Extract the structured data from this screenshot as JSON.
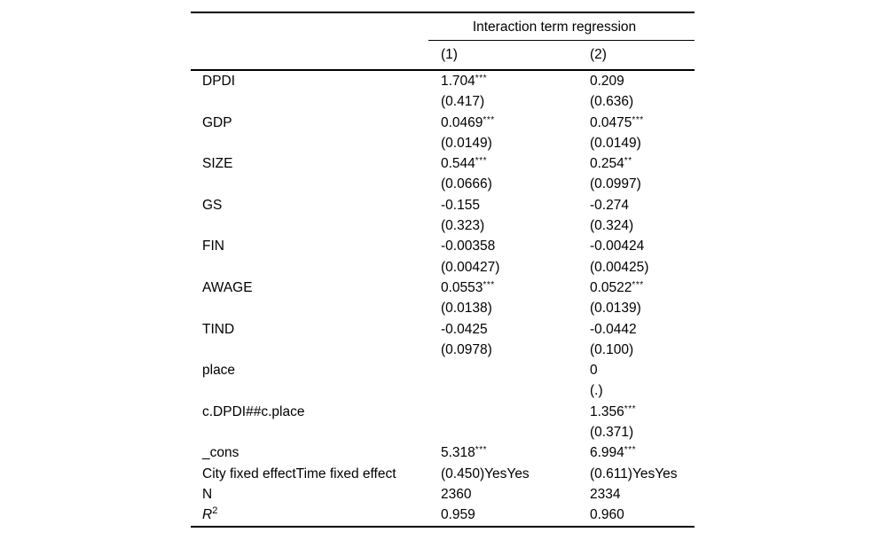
{
  "table": {
    "spanner": "Interaction term regression",
    "column_headers": [
      "(1)",
      "(2)"
    ],
    "rows": [
      {
        "label": "DPDI",
        "c1": "1.704***",
        "c2": "0.209"
      },
      {
        "label": "",
        "c1": "(0.417)",
        "c2": "(0.636)"
      },
      {
        "label": "GDP",
        "c1": "0.0469***",
        "c2": "0.0475***"
      },
      {
        "label": "",
        "c1": "(0.0149)",
        "c2": "(0.0149)"
      },
      {
        "label": "SIZE",
        "c1": "0.544***",
        "c2": "0.254**"
      },
      {
        "label": "",
        "c1": "(0.0666)",
        "c2": "(0.0997)"
      },
      {
        "label": "GS",
        "c1": "-0.155",
        "c2": "-0.274"
      },
      {
        "label": "",
        "c1": "(0.323)",
        "c2": "(0.324)"
      },
      {
        "label": "FIN",
        "c1": "-0.00358",
        "c2": "-0.00424"
      },
      {
        "label": "",
        "c1": "(0.00427)",
        "c2": "(0.00425)"
      },
      {
        "label": "AWAGE",
        "c1": "0.0553***",
        "c2": "0.0522***"
      },
      {
        "label": "",
        "c1": "(0.0138)",
        "c2": "(0.0139)"
      },
      {
        "label": "TIND",
        "c1": "-0.0425",
        "c2": "-0.0442"
      },
      {
        "label": "",
        "c1": "(0.0978)",
        "c2": "(0.100)"
      },
      {
        "label": "place",
        "c1": "",
        "c2": "0"
      },
      {
        "label": "",
        "c1": "",
        "c2": "(.)"
      },
      {
        "label": "c.DPDI##c.place",
        "c1": "",
        "c2": "1.356***"
      },
      {
        "label": "",
        "c1": "",
        "c2": "(0.371)"
      },
      {
        "label": "_cons",
        "c1": "5.318***",
        "c2": "6.994***"
      },
      {
        "label": "City fixed effectTime fixed effect",
        "c1": "(0.450)YesYes",
        "c2": "(0.611)YesYes"
      },
      {
        "label": "N",
        "c1": "2360",
        "c2": "2334"
      },
      {
        "label": "R",
        "label_sup": "2",
        "label_italic": true,
        "c1": "0.959",
        "c2": "0.960"
      }
    ]
  }
}
